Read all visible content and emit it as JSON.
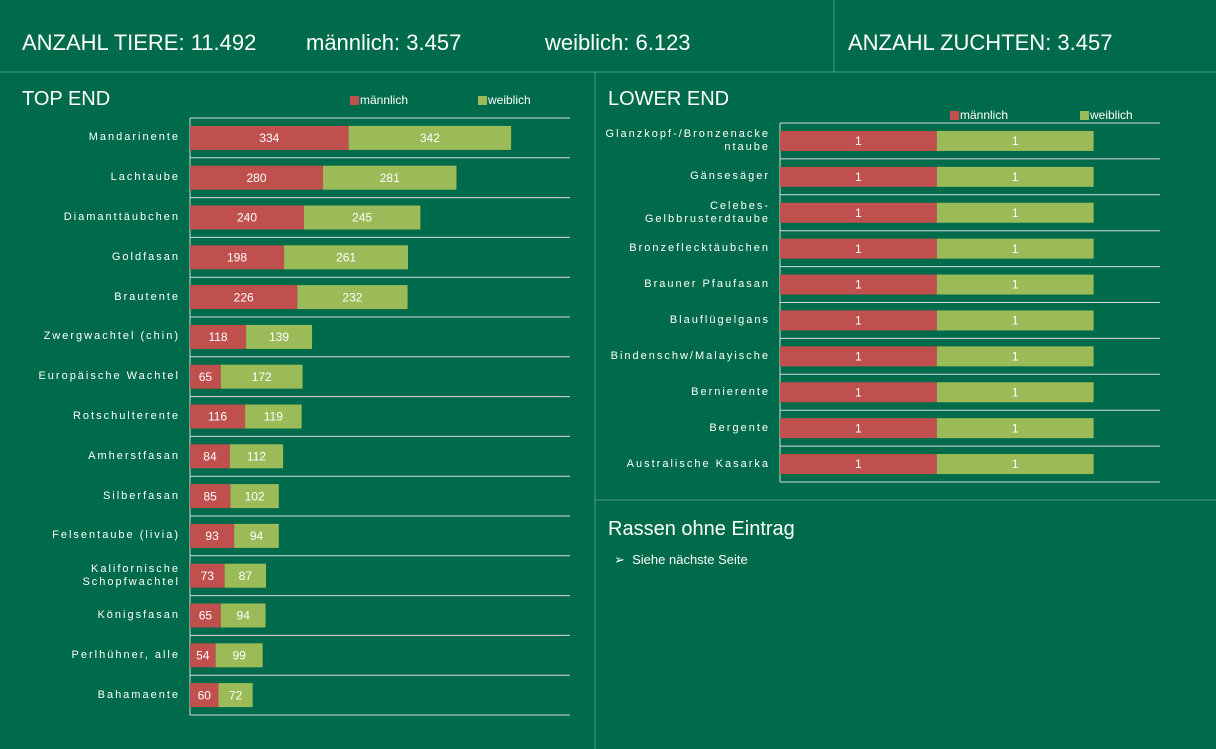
{
  "header": {
    "anzahl_tiere": "ANZAHL TIERE: 11.492",
    "maennlich": "männlich: 3.457",
    "weiblich": "weiblich: 6.123",
    "anzahl_zuchten": "ANZAHL ZUCHTEN: 3.457"
  },
  "chart_data": [
    {
      "type": "stacked_barh",
      "title": "TOP END",
      "categories": [
        "Mandarinente",
        "Lachtaube",
        "Diamanttäubchen",
        "Goldfasan",
        "Brautente",
        "Zwergwachtel (chin)",
        "Europäische Wachtel",
        "Rotschulterente",
        "Amherstfasan",
        "Silberfasan",
        "Felsentaube (livia)",
        "Kalifornische Schopfwachtel",
        "Königsfasan",
        "Perlhühner, alle",
        "Bahamaente"
      ],
      "series": [
        {
          "name": "männlich",
          "color": "#c0504d",
          "values": [
            334,
            280,
            240,
            198,
            226,
            118,
            65,
            116,
            84,
            85,
            93,
            73,
            65,
            54,
            60
          ]
        },
        {
          "name": "weiblich",
          "color": "#9bbb59",
          "values": [
            342,
            281,
            245,
            261,
            232,
            139,
            172,
            119,
            112,
            102,
            94,
            87,
            94,
            99,
            72
          ]
        }
      ],
      "xlim": [
        0,
        800
      ],
      "legend": "top"
    },
    {
      "type": "stacked_barh",
      "title": "LOWER END",
      "categories": [
        "Glanzkopf-/Bronzenackentaube",
        "Gänsesäger",
        "Celebes-Gelbbrusterdtaube",
        "Bronzeflecktäubchen",
        "Brauner Pfaufasan",
        "Blauflügelgans",
        "Bindenschw/Malayische",
        "Bernierente",
        "Bergente",
        "Australische Kasarka"
      ],
      "series": [
        {
          "name": "männlich",
          "color": "#c0504d",
          "values": [
            1,
            1,
            1,
            1,
            1,
            1,
            1,
            1,
            1,
            1
          ]
        },
        {
          "name": "weiblich",
          "color": "#9bbb59",
          "values": [
            1,
            1,
            1,
            1,
            1,
            1,
            1,
            1,
            1,
            1
          ]
        }
      ],
      "xlim": [
        0,
        2.5
      ],
      "legend": "top"
    }
  ],
  "panel": {
    "title": "Rassen ohne Eintrag",
    "items": [
      "Siehe nächste Seite"
    ]
  }
}
